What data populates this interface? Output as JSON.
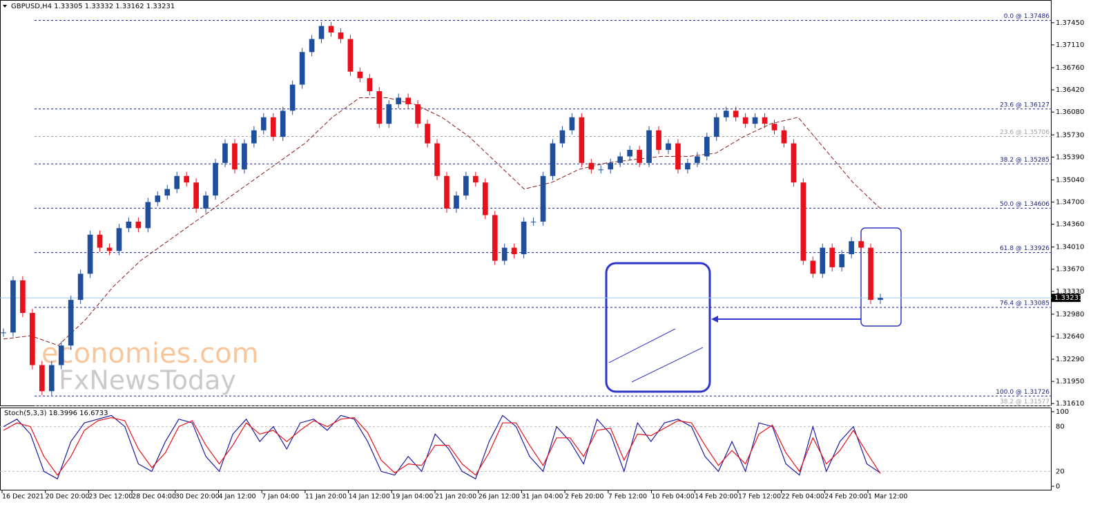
{
  "chart_data": {
    "type": "candlestick",
    "title": "GBPUSD,H4  1.33305 1.33332 1.33162 1.33231",
    "closes": [
      1.327,
      1.335,
      1.33,
      1.322,
      1.318,
      1.322,
      1.325,
      1.332,
      1.336,
      1.342,
      1.34,
      1.3395,
      1.343,
      1.344,
      1.343,
      1.347,
      1.348,
      1.349,
      1.351,
      1.35,
      1.346,
      1.348,
      1.353,
      1.356,
      1.352,
      1.356,
      1.358,
      1.36,
      1.357,
      1.361,
      1.365,
      1.37,
      1.372,
      1.374,
      1.373,
      1.372,
      1.367,
      1.366,
      1.364,
      1.359,
      1.362,
      1.363,
      1.362,
      1.359,
      1.356,
      1.351,
      1.346,
      1.348,
      1.351,
      1.35,
      1.345,
      1.338,
      1.34,
      1.339,
      1.344,
      1.344,
      1.351,
      1.356,
      1.358,
      1.36,
      1.353,
      1.352,
      1.352,
      1.353,
      1.354,
      1.355,
      1.353,
      1.358,
      1.355,
      1.356,
      1.352,
      1.353,
      1.354,
      1.357,
      1.36,
      1.361,
      1.36,
      1.359,
      1.36,
      1.359,
      1.358,
      1.356,
      1.35,
      1.338,
      1.336,
      1.34,
      1.337,
      1.339,
      1.341,
      1.34,
      1.332,
      1.3323
    ],
    "up_color": "#1f4e9c",
    "down_color": "#e8101a",
    "ma": [
      1.326,
      1.3265,
      1.325,
      1.329,
      1.334,
      1.338,
      1.341,
      1.344,
      1.347,
      1.35,
      1.353,
      1.356,
      1.36,
      1.363,
      1.363,
      1.362,
      1.36,
      1.357,
      1.353,
      1.349,
      1.35,
      1.352,
      1.353,
      1.3535,
      1.354,
      1.354,
      1.3545,
      1.357,
      1.359,
      1.36,
      1.355,
      1.35,
      1.346
    ],
    "ma_color": "#8b1a1a",
    "ylim": [
      1.3157,
      1.3765
    ],
    "yticks": [
      {
        "value": 1.3745,
        "label": "1.37450"
      },
      {
        "value": 1.3711,
        "label": "1.37110"
      },
      {
        "value": 1.3676,
        "label": "1.36760"
      },
      {
        "value": 1.3642,
        "label": "1.36420"
      },
      {
        "value": 1.3608,
        "label": "1.36080"
      },
      {
        "value": 1.3573,
        "label": "1.35730"
      },
      {
        "value": 1.3539,
        "label": "1.35390"
      },
      {
        "value": 1.3504,
        "label": "1.35040"
      },
      {
        "value": 1.347,
        "label": "1.34700"
      },
      {
        "value": 1.3436,
        "label": "1.34360"
      },
      {
        "value": 1.3401,
        "label": "1.34010"
      },
      {
        "value": 1.3367,
        "label": "1.33670"
      },
      {
        "value": 1.3333,
        "label": "1.33330"
      },
      {
        "value": 1.3298,
        "label": "1.32980"
      },
      {
        "value": 1.3264,
        "label": "1.32640"
      },
      {
        "value": 1.3229,
        "label": "1.32290"
      },
      {
        "value": 1.3195,
        "label": "1.31950"
      },
      {
        "value": 1.3161,
        "label": "1.31610"
      }
    ],
    "fib_levels": [
      {
        "label": "0.0 @ 1.37486",
        "value": 1.37486,
        "color": "#1a237e"
      },
      {
        "label": "23.6 @ 1.36127",
        "value": 1.36127,
        "color": "#1a237e"
      },
      {
        "label": "23.6 @ 1.35706",
        "value": 1.35706,
        "color": "#a0a0a0"
      },
      {
        "label": "38.2 @ 1.35285",
        "value": 1.35285,
        "color": "#1a237e"
      },
      {
        "label": "50.0 @ 1.34606",
        "value": 1.34606,
        "color": "#1a237e"
      },
      {
        "label": "61.8 @ 1.33926",
        "value": 1.33926,
        "color": "#1a237e"
      },
      {
        "label": "76.4 @ 1.33085",
        "value": 1.33085,
        "color": "#1a237e"
      },
      {
        "label": "100.0 @ 1.31726",
        "value": 1.31726,
        "color": "#1a237e"
      },
      {
        "label": "38.2 @ 1.31577",
        "value": 1.31577,
        "color": "#a0a0a0"
      }
    ],
    "current_price": 1.33231,
    "x_labels": [
      "16 Dec 2021",
      "20 Dec 20:00",
      "23 Dec 12:00",
      "28 Dec 04:00",
      "30 Dec 20:00",
      "4 Jan 12:00",
      "7 Jan 04:00",
      "11 Jan 20:00",
      "14 Jan 12:00",
      "19 Jan 04:00",
      "21 Jan 20:00",
      "26 Jan 12:00",
      "31 Jan 04:00",
      "2 Feb 20:00",
      "7 Feb 12:00",
      "10 Feb 04:00",
      "14 Feb 20:00",
      "17 Feb 12:00",
      "22 Feb 04:00",
      "24 Feb 20:00",
      "1 Mar 12:00"
    ],
    "watermark": [
      "economies.com",
      "FxNewsToday"
    ],
    "stochastic": {
      "label": "Stoch(5,3,3) 18.3996 16.6733",
      "ylim": [
        0,
        100
      ],
      "yticks": [
        0,
        20,
        80,
        100
      ],
      "series": [
        {
          "name": "%K",
          "color": "#1a1aa0",
          "values": [
            80,
            90,
            70,
            20,
            10,
            60,
            85,
            90,
            95,
            80,
            30,
            20,
            60,
            90,
            85,
            40,
            20,
            70,
            90,
            60,
            80,
            50,
            85,
            90,
            75,
            95,
            90,
            60,
            20,
            15,
            40,
            20,
            70,
            50,
            20,
            10,
            60,
            95,
            80,
            40,
            20,
            80,
            60,
            30,
            90,
            70,
            20,
            85,
            60,
            85,
            90,
            80,
            40,
            20,
            60,
            20,
            85,
            80,
            30,
            15,
            80,
            20,
            60,
            80,
            30,
            18
          ]
        },
        {
          "name": "%D",
          "color": "#e8101a",
          "values": [
            75,
            85,
            80,
            40,
            15,
            40,
            75,
            88,
            92,
            88,
            50,
            25,
            45,
            80,
            88,
            55,
            30,
            55,
            85,
            70,
            75,
            60,
            75,
            88,
            80,
            90,
            92,
            72,
            35,
            18,
            30,
            28,
            55,
            55,
            30,
            15,
            45,
            85,
            85,
            55,
            28,
            65,
            65,
            40,
            75,
            78,
            35,
            70,
            68,
            78,
            88,
            85,
            55,
            28,
            48,
            30,
            70,
            82,
            45,
            20,
            65,
            30,
            48,
            75,
            45,
            17
          ]
        }
      ]
    }
  }
}
